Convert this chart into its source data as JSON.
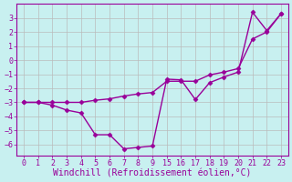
{
  "xlabel": "Windchill (Refroidissement éolien,°C)",
  "background_color": "#c8f0f0",
  "line_color": "#990099",
  "grid_color": "#bbbbbb",
  "tick_labels": [
    "0",
    "1",
    "2",
    "3",
    "4",
    "5",
    "6",
    "7",
    "8",
    "9",
    "15",
    "16",
    "17",
    "18",
    "19",
    "20",
    "21",
    "22",
    "23"
  ],
  "line1_xi": [
    0,
    1,
    2,
    3,
    4,
    5,
    6,
    7,
    8,
    9,
    10,
    11,
    12,
    13,
    14,
    15,
    16,
    17,
    18
  ],
  "line1_y": [
    -3.0,
    -3.0,
    -3.2,
    -3.55,
    -3.75,
    -5.3,
    -5.3,
    -6.3,
    -6.2,
    -6.1,
    -1.35,
    -1.4,
    -2.8,
    -1.6,
    -1.2,
    -0.85,
    3.4,
    2.1,
    3.3
  ],
  "line2_xi": [
    0,
    1,
    2,
    3,
    4,
    5,
    6,
    7,
    8,
    9,
    10,
    11,
    12,
    13,
    14,
    15,
    16,
    17,
    18
  ],
  "line2_y": [
    -3.0,
    -3.0,
    -3.0,
    -3.0,
    -3.0,
    -2.85,
    -2.75,
    -2.55,
    -2.4,
    -2.3,
    -1.5,
    -1.5,
    -1.5,
    -1.05,
    -0.85,
    -0.6,
    1.5,
    2.0,
    3.3
  ],
  "xlim": [
    -0.5,
    18.5
  ],
  "ylim": [
    -6.8,
    4.0
  ],
  "yticks": [
    -6,
    -5,
    -4,
    -3,
    -2,
    -1,
    0,
    1,
    2,
    3
  ],
  "marker": "D",
  "markersize": 2.5,
  "linewidth": 1.0,
  "xlabel_fontsize": 7,
  "tick_fontsize": 6
}
